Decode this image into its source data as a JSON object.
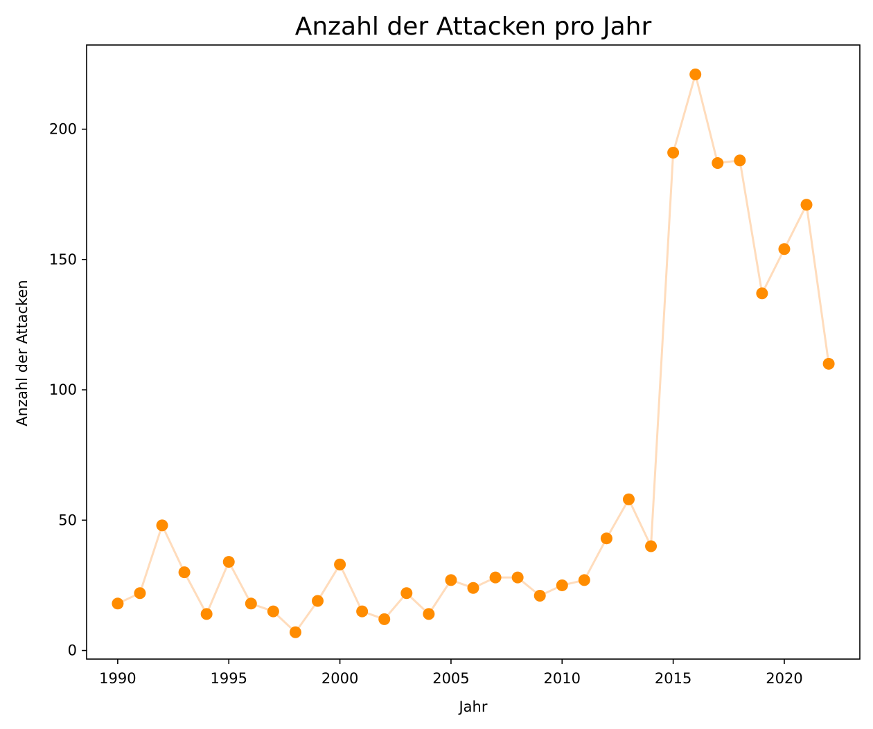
{
  "chart_data": {
    "type": "line",
    "title": "Anzahl der Attacken pro Jahr",
    "xlabel": "Jahr",
    "ylabel": "Anzahl der Attacken",
    "xlim": [
      1988.6,
      2023.4
    ],
    "ylim": [
      -3.3,
      232.3
    ],
    "xticks": [
      1990,
      1995,
      2000,
      2005,
      2010,
      2015,
      2020
    ],
    "yticks": [
      0,
      50,
      100,
      150,
      200
    ],
    "grid": false,
    "legend": false,
    "colors": {
      "line": "#ffdcbc",
      "marker": "#ff8c00",
      "axes": "#000000"
    },
    "series": [
      {
        "x": [
          1990,
          1991,
          1992,
          1993,
          1994,
          1995,
          1996,
          1997,
          1998,
          1999,
          2000,
          2001,
          2002,
          2003,
          2004,
          2005,
          2006,
          2007,
          2008,
          2009,
          2010,
          2011,
          2012,
          2013,
          2014,
          2015,
          2016,
          2017,
          2018,
          2019,
          2020,
          2021,
          2022
        ],
        "y": [
          18,
          22,
          48,
          30,
          14,
          34,
          18,
          15,
          7,
          19,
          33,
          15,
          12,
          22,
          14,
          27,
          24,
          28,
          28,
          21,
          25,
          27,
          43,
          58,
          40,
          191,
          221,
          187,
          188,
          137,
          154,
          171,
          110
        ]
      }
    ]
  }
}
